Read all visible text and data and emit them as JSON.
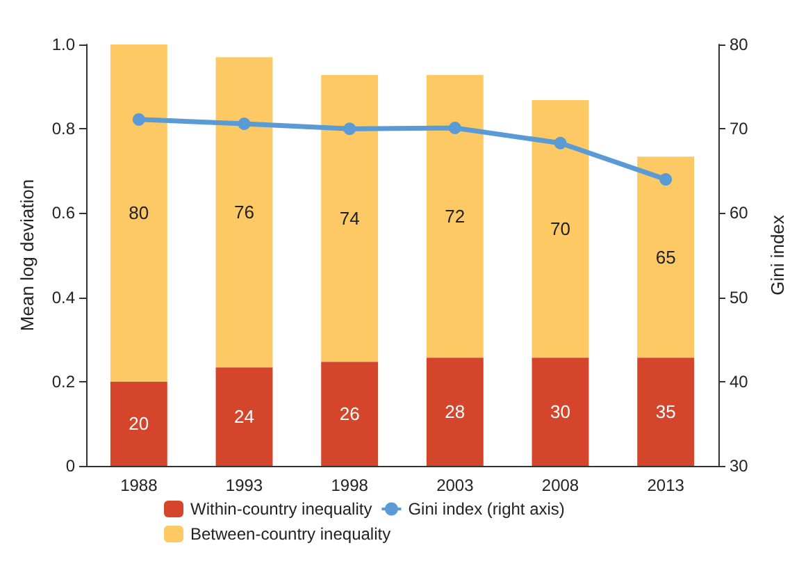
{
  "chart_data": {
    "type": "bar",
    "stacked": true,
    "categories": [
      "1988",
      "1993",
      "1998",
      "2003",
      "2008",
      "2013"
    ],
    "series": [
      {
        "name": "Within-country inequality",
        "color": "#d4452b",
        "values": [
          0.2,
          0.234,
          0.247,
          0.257,
          0.257,
          0.257
        ]
      },
      {
        "name": "Between-country inequality",
        "color": "#fdc965",
        "values": [
          0.8,
          0.736,
          0.681,
          0.671,
          0.611,
          0.477
        ]
      },
      {
        "name": "Gini index (right axis)",
        "type": "line",
        "axis": "y2",
        "color": "#5b9bd5",
        "values": [
          71.1,
          70.6,
          70.0,
          70.1,
          68.3,
          64.0
        ]
      }
    ],
    "annotations": [
      "20",
      "24",
      "26",
      "28",
      "30",
      "35",
      "80",
      "76",
      "74",
      "72",
      "70",
      "65"
    ],
    "ylabel": "Mean log deviation",
    "y2label": "Gini index",
    "ylim": [
      0,
      1
    ],
    "yticks": [
      0,
      0.2,
      0.4,
      0.6,
      0.8,
      {
        "value": 1,
        "label": "1.0"
      }
    ],
    "y2lim": [
      30,
      80
    ],
    "y2ticks": [
      30,
      40,
      50,
      60,
      70,
      80
    ],
    "marker": "circle",
    "grid": false,
    "legend": "bottom"
  }
}
